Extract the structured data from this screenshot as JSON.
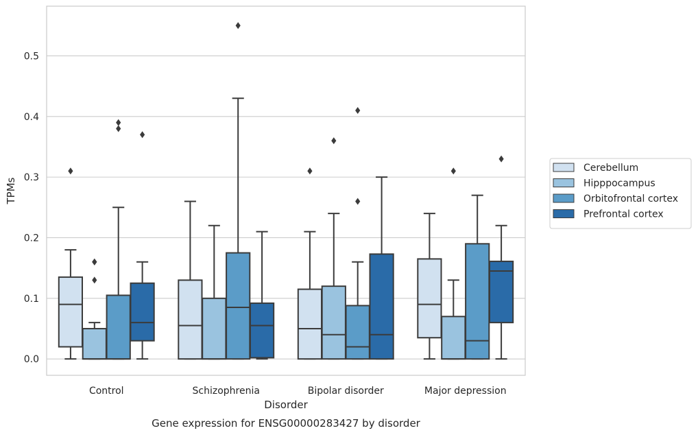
{
  "chart_data": {
    "type": "box",
    "xlabel": "Disorder",
    "ylabel": "TPMs",
    "caption": "Gene expression for ENSG00000283427 by disorder",
    "ylim": [
      -0.027,
      0.582
    ],
    "yticks": [
      "0.0",
      "0.1",
      "0.2",
      "0.3",
      "0.4",
      "0.5"
    ],
    "ytick_values": [
      0.0,
      0.1,
      0.2,
      0.3,
      0.4,
      0.5
    ],
    "grid": true,
    "legend_position": "right",
    "categories": [
      "Control",
      "Schizophrenia",
      "Bipolar disorder",
      "Major depression"
    ],
    "series": [
      {
        "name": "Cerebellum",
        "color": "#d1e1f0",
        "boxes": [
          {
            "category": "Control",
            "whisker_low": 0.0,
            "q1": 0.02,
            "median": 0.09,
            "q3": 0.135,
            "whisker_high": 0.18,
            "outliers": [
              0.31
            ]
          },
          {
            "category": "Schizophrenia",
            "whisker_low": 0.0,
            "q1": 0.0,
            "median": 0.055,
            "q3": 0.13,
            "whisker_high": 0.26,
            "outliers": []
          },
          {
            "category": "Bipolar disorder",
            "whisker_low": 0.0,
            "q1": 0.0,
            "median": 0.05,
            "q3": 0.115,
            "whisker_high": 0.21,
            "outliers": [
              0.31
            ]
          },
          {
            "category": "Major depression",
            "whisker_low": 0.0,
            "q1": 0.035,
            "median": 0.09,
            "q3": 0.165,
            "whisker_high": 0.24,
            "outliers": []
          }
        ]
      },
      {
        "name": "Hipppocampus",
        "color": "#9ac3df",
        "boxes": [
          {
            "category": "Control",
            "whisker_low": 0.0,
            "q1": 0.0,
            "median": 0.0,
            "q3": 0.05,
            "whisker_high": 0.06,
            "outliers": [
              0.13,
              0.16,
              0.16
            ]
          },
          {
            "category": "Schizophrenia",
            "whisker_low": 0.0,
            "q1": 0.0,
            "median": 0.0,
            "q3": 0.1,
            "whisker_high": 0.22,
            "outliers": []
          },
          {
            "category": "Bipolar disorder",
            "whisker_low": 0.0,
            "q1": 0.0,
            "median": 0.04,
            "q3": 0.12,
            "whisker_high": 0.24,
            "outliers": [
              0.36
            ]
          },
          {
            "category": "Major depression",
            "whisker_low": 0.0,
            "q1": 0.0,
            "median": 0.0,
            "q3": 0.07,
            "whisker_high": 0.13,
            "outliers": [
              0.31
            ]
          }
        ]
      },
      {
        "name": "Orbitofrontal cortex",
        "color": "#5b9cc8",
        "boxes": [
          {
            "category": "Control",
            "whisker_low": 0.0,
            "q1": 0.0,
            "median": 0.0,
            "q3": 0.105,
            "whisker_high": 0.25,
            "outliers": [
              0.38,
              0.39
            ]
          },
          {
            "category": "Schizophrenia",
            "whisker_low": 0.0,
            "q1": 0.0,
            "median": 0.085,
            "q3": 0.175,
            "whisker_high": 0.43,
            "outliers": [
              0.55
            ]
          },
          {
            "category": "Bipolar disorder",
            "whisker_low": 0.0,
            "q1": 0.0,
            "median": 0.02,
            "q3": 0.088,
            "whisker_high": 0.16,
            "outliers": [
              0.26,
              0.41
            ]
          },
          {
            "category": "Major depression",
            "whisker_low": 0.0,
            "q1": 0.0,
            "median": 0.03,
            "q3": 0.19,
            "whisker_high": 0.27,
            "outliers": []
          }
        ]
      },
      {
        "name": "Prefrontal cortex",
        "color": "#2a6ba8",
        "boxes": [
          {
            "category": "Control",
            "whisker_low": 0.0,
            "q1": 0.03,
            "median": 0.06,
            "q3": 0.125,
            "whisker_high": 0.16,
            "outliers": [
              0.37
            ]
          },
          {
            "category": "Schizophrenia",
            "whisker_low": 0.0,
            "q1": 0.002,
            "median": 0.055,
            "q3": 0.092,
            "whisker_high": 0.21,
            "outliers": []
          },
          {
            "category": "Bipolar disorder",
            "whisker_low": 0.0,
            "q1": 0.0,
            "median": 0.04,
            "q3": 0.173,
            "whisker_high": 0.3,
            "outliers": []
          },
          {
            "category": "Major depression",
            "whisker_low": 0.0,
            "q1": 0.06,
            "median": 0.145,
            "q3": 0.161,
            "whisker_high": 0.22,
            "outliers": [
              0.33
            ]
          }
        ]
      }
    ]
  }
}
